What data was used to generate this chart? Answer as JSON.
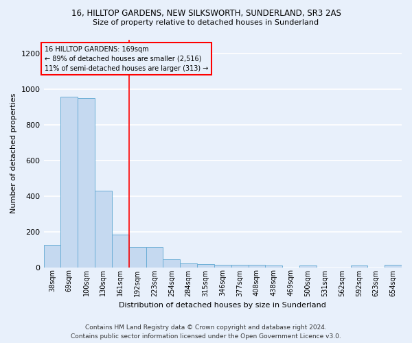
{
  "title": "16, HILLTOP GARDENS, NEW SILKSWORTH, SUNDERLAND, SR3 2AS",
  "subtitle": "Size of property relative to detached houses in Sunderland",
  "xlabel": "Distribution of detached houses by size in Sunderland",
  "ylabel": "Number of detached properties",
  "categories": [
    "38sqm",
    "69sqm",
    "100sqm",
    "130sqm",
    "161sqm",
    "192sqm",
    "223sqm",
    "254sqm",
    "284sqm",
    "315sqm",
    "346sqm",
    "377sqm",
    "408sqm",
    "438sqm",
    "469sqm",
    "500sqm",
    "531sqm",
    "562sqm",
    "592sqm",
    "623sqm",
    "654sqm"
  ],
  "values": [
    125,
    960,
    950,
    430,
    185,
    115,
    115,
    45,
    20,
    18,
    15,
    15,
    15,
    10,
    0,
    10,
    0,
    0,
    10,
    0,
    12
  ],
  "bar_color": "#c5d9f0",
  "bar_edge_color": "#6baed6",
  "background_color": "#e8f0fb",
  "grid_color": "#ffffff",
  "red_line_x": 4.5,
  "annotation_text_line1": "16 HILLTOP GARDENS: 169sqm",
  "annotation_text_line2": "← 89% of detached houses are smaller (2,516)",
  "annotation_text_line3": "11% of semi-detached houses are larger (313) →",
  "footer": "Contains HM Land Registry data © Crown copyright and database right 2024.\nContains public sector information licensed under the Open Government Licence v3.0.",
  "ylim": [
    0,
    1280
  ],
  "yticks": [
    0,
    200,
    400,
    600,
    800,
    1000,
    1200
  ]
}
